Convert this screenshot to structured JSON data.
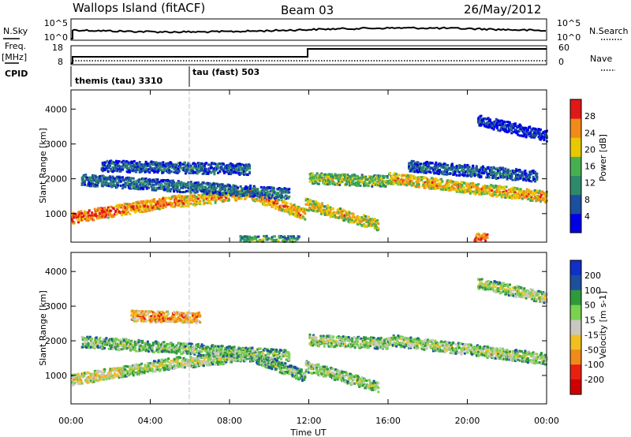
{
  "header": {
    "station": "Wallops Island (fitACF)",
    "beam": "Beam 03",
    "date": "26/May/2012"
  },
  "left_labels": {
    "nsky": "N.Sky",
    "freq_line1": "Freq.",
    "freq_line2": "[MHz]",
    "cpid": "CPID"
  },
  "right_labels": {
    "nsearch": "N.Search",
    "nave": "Nave"
  },
  "noise_axis": {
    "left_ticks": [
      "10^5",
      "10^0"
    ],
    "right_ticks": [
      "10^5",
      "10^0"
    ]
  },
  "freq_axis": {
    "left_ticks": [
      "18",
      "8"
    ],
    "right_ticks": [
      "60",
      "0"
    ]
  },
  "cpid_modes": [
    {
      "label": "themis (tau) 3310",
      "start_hour": 0,
      "end_hour": 6
    },
    {
      "label": "tau (fast) 503",
      "start_hour": 6,
      "end_hour": 24
    }
  ],
  "chart_data": [
    {
      "type": "heatmap",
      "panel": "power",
      "ylabel": "Slant Range [km]",
      "yticks": [
        1000,
        2000,
        3000,
        4000
      ],
      "ylim": [
        180,
        4550
      ],
      "colorbar_label": "Power [dB]",
      "colorbar_ticks": [
        4,
        8,
        12,
        16,
        20,
        24,
        28
      ],
      "colorbar_range": [
        0,
        32
      ],
      "colors": [
        "#0000e6",
        "#1c4fa0",
        "#2e8a6a",
        "#46b050",
        "#e8c800",
        "#f28a1a",
        "#e01818"
      ],
      "echo_bands": [
        {
          "start": 0.0,
          "end": 2.6,
          "r0": 900,
          "r1": 1150,
          "level": 0.9
        },
        {
          "start": 2.6,
          "end": 5.5,
          "r0": 1150,
          "r1": 1420,
          "level": 0.85
        },
        {
          "start": 5.5,
          "end": 9.0,
          "r0": 1380,
          "r1": 1620,
          "level": 0.78
        },
        {
          "start": 9.0,
          "end": 11.8,
          "r0": 1600,
          "r1": 1000,
          "level": 0.8
        },
        {
          "start": 11.8,
          "end": 15.5,
          "r0": 1300,
          "r1": 700,
          "level": 0.7
        },
        {
          "start": 12.0,
          "end": 16.0,
          "r0": 2050,
          "r1": 1950,
          "level": 0.6
        },
        {
          "start": 16.0,
          "end": 24.0,
          "r0": 2050,
          "r1": 1500,
          "level": 0.75
        },
        {
          "start": 0.5,
          "end": 11.0,
          "r0": 2000,
          "r1": 1600,
          "level": 0.35
        },
        {
          "start": 1.5,
          "end": 9.0,
          "r0": 2400,
          "r1": 2300,
          "level": 0.3
        },
        {
          "start": 17.0,
          "end": 23.5,
          "r0": 2400,
          "r1": 2100,
          "level": 0.3
        },
        {
          "start": 20.5,
          "end": 24.0,
          "r0": 3700,
          "r1": 3250,
          "level": 0.2
        },
        {
          "start": 8.5,
          "end": 11.5,
          "r0": 230,
          "r1": 230,
          "level": 0.5
        },
        {
          "start": 20.3,
          "end": 21.0,
          "r0": 300,
          "r1": 300,
          "level": 0.9
        }
      ]
    },
    {
      "type": "heatmap",
      "panel": "velocity",
      "ylabel": "Slant Range [km]",
      "yticks": [
        1000,
        2000,
        3000,
        4000
      ],
      "ylim": [
        180,
        4550
      ],
      "colorbar_label": "Velocity [m s-1]",
      "colorbar_ticks": [
        200,
        100,
        50,
        15,
        -15,
        -50,
        -100,
        -200
      ],
      "colors": [
        "#1030c8",
        "#1c4fa0",
        "#2e9a3a",
        "#7ad050",
        "#c8c8c0",
        "#f0c020",
        "#f08a1a",
        "#e82010",
        "#d00000"
      ],
      "echo_bands": [
        {
          "start": 0.0,
          "end": 2.6,
          "r0": 900,
          "r1": 1150,
          "level": 0.62
        },
        {
          "start": 2.6,
          "end": 5.5,
          "r0": 1150,
          "r1": 1420,
          "level": 0.5
        },
        {
          "start": 5.5,
          "end": 9.0,
          "r0": 1380,
          "r1": 1620,
          "level": 0.5
        },
        {
          "start": 9.0,
          "end": 11.8,
          "r0": 1600,
          "r1": 1000,
          "level": 0.42
        },
        {
          "start": 11.8,
          "end": 15.5,
          "r0": 1300,
          "r1": 700,
          "level": 0.5
        },
        {
          "start": 12.0,
          "end": 16.0,
          "r0": 2050,
          "r1": 1950,
          "level": 0.5
        },
        {
          "start": 16.0,
          "end": 24.0,
          "r0": 2050,
          "r1": 1500,
          "level": 0.5
        },
        {
          "start": 0.5,
          "end": 11.0,
          "r0": 2000,
          "r1": 1600,
          "level": 0.45
        },
        {
          "start": 3.0,
          "end": 6.5,
          "r0": 2750,
          "r1": 2700,
          "level": 0.75
        },
        {
          "start": 20.5,
          "end": 24.0,
          "r0": 3700,
          "r1": 3250,
          "level": 0.5
        }
      ]
    }
  ],
  "time_axis": {
    "ticks": [
      "00:00",
      "04:00",
      "08:00",
      "12:00",
      "16:00",
      "20:00",
      "00:00"
    ],
    "xlabel": "Time UT",
    "range_hours": [
      0,
      24
    ]
  }
}
